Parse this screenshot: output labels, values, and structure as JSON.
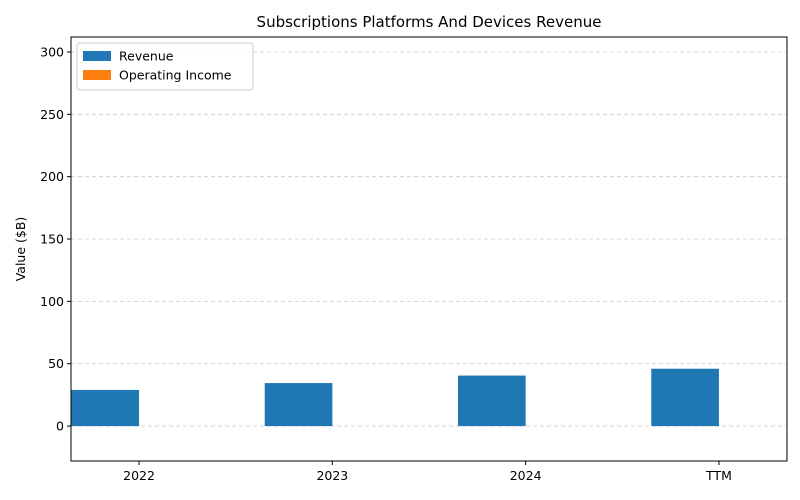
{
  "chart_data": {
    "type": "bar",
    "title": "Subscriptions Platforms And Devices Revenue",
    "xlabel": "",
    "ylabel": "Value ($B)",
    "categories": [
      "2022",
      "2023",
      "2024",
      "TTM"
    ],
    "series": [
      {
        "name": "Revenue",
        "values": [
          29,
          34.5,
          40.5,
          46
        ],
        "color": "#1f77b4"
      },
      {
        "name": "Operating Income",
        "values": [
          0,
          0,
          0,
          0
        ],
        "color": "#ff7f0e"
      }
    ],
    "ylim": [
      -28,
      312
    ],
    "yticks": [
      0,
      50,
      100,
      150,
      200,
      250,
      300
    ],
    "grid": true,
    "legend_position": "top-left"
  }
}
